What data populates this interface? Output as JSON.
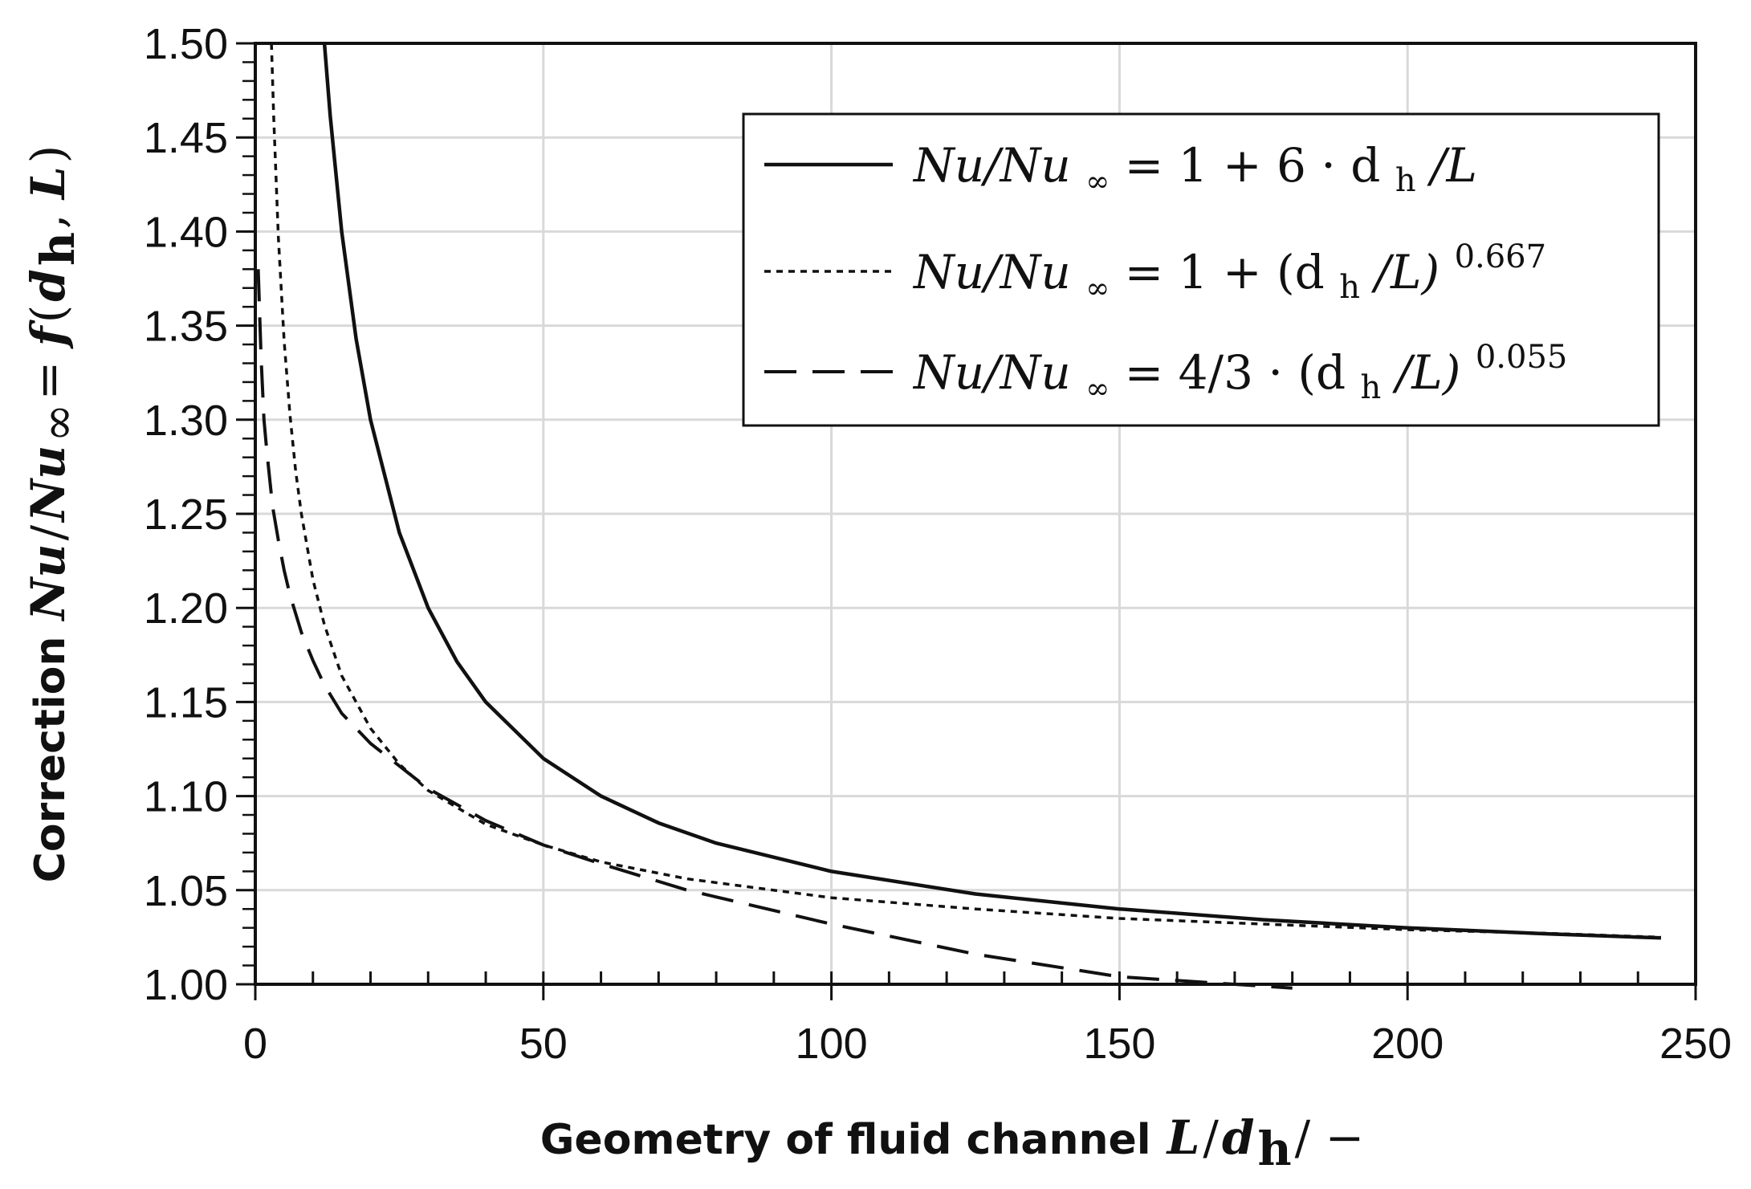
{
  "chart_data": {
    "type": "line",
    "xlabel": {
      "prefix": "Geometry of fluid channel",
      "math_L": "L",
      "math_slash": "/",
      "math_d": "d",
      "math_sub": "h",
      "math_suffix": " / −"
    },
    "ylabel": {
      "prefix": "Correction",
      "math_Nu": "Nu",
      "math_slash": "/",
      "math_Nu2": "Nu",
      "math_inf": "∞",
      "math_eq": " = ",
      "math_f": "f",
      "math_open": "(",
      "math_d": "d",
      "math_sub": "h",
      "math_comma": ", ",
      "math_L": "L",
      "math_close": ")"
    },
    "xlim": [
      0,
      250
    ],
    "ylim": [
      1.0,
      1.5
    ],
    "x_ticks": [
      "0",
      "50",
      "100",
      "150",
      "200",
      "250"
    ],
    "y_ticks": [
      "1.00",
      "1.05",
      "1.10",
      "1.15",
      "1.20",
      "1.25",
      "1.30",
      "1.35",
      "1.40",
      "1.45",
      "1.50"
    ],
    "grid": true,
    "legend_position": "top-right",
    "series": [
      {
        "key": "s1",
        "line_style": "solid",
        "color": "#111111",
        "legend": {
          "lhs": "Nu/Nu",
          "inf": "∞",
          "rhs": " = 1 + 6 · d",
          "sub": "h",
          "tail": "/L",
          "sup": ""
        },
        "points": [
          [
            12.0,
            1.5
          ],
          [
            13.0,
            1.4615
          ],
          [
            15.0,
            1.4
          ],
          [
            17.5,
            1.3429
          ],
          [
            20.0,
            1.3
          ],
          [
            25.0,
            1.24
          ],
          [
            30.0,
            1.2
          ],
          [
            35.0,
            1.1714
          ],
          [
            40.0,
            1.15
          ],
          [
            50.0,
            1.12
          ],
          [
            60.0,
            1.1
          ],
          [
            70.0,
            1.0857
          ],
          [
            80.0,
            1.075
          ],
          [
            100.0,
            1.06
          ],
          [
            125.0,
            1.048
          ],
          [
            150.0,
            1.04
          ],
          [
            175.0,
            1.0343
          ],
          [
            200.0,
            1.03
          ],
          [
            225.0,
            1.0267
          ],
          [
            244.0,
            1.0246
          ]
        ]
      },
      {
        "key": "s2",
        "line_style": "dotted",
        "color": "#111111",
        "legend": {
          "lhs": "Nu/Nu",
          "inf": "∞",
          "rhs": " = 1 + (d",
          "sub": "h",
          "tail": "/L)",
          "sup": "0.667"
        },
        "points": [
          [
            2.8,
            1.5
          ],
          [
            3.2,
            1.46
          ],
          [
            4.0,
            1.397
          ],
          [
            5.0,
            1.342
          ],
          [
            6.0,
            1.303
          ],
          [
            7.0,
            1.273
          ],
          [
            8.0,
            1.25
          ],
          [
            10.0,
            1.215
          ],
          [
            12.0,
            1.191
          ],
          [
            15.0,
            1.164
          ],
          [
            20.0,
            1.136
          ],
          [
            25.0,
            1.117
          ],
          [
            30.0,
            1.103
          ],
          [
            40.0,
            1.085
          ],
          [
            50.0,
            1.074
          ],
          [
            60.0,
            1.065
          ],
          [
            75.0,
            1.056
          ],
          [
            100.0,
            1.046
          ],
          [
            125.0,
            1.04
          ],
          [
            150.0,
            1.035
          ],
          [
            175.0,
            1.032
          ],
          [
            200.0,
            1.029
          ],
          [
            225.0,
            1.027
          ],
          [
            244.0,
            1.025
          ]
        ]
      },
      {
        "key": "s3",
        "line_style": "dashed",
        "color": "#111111",
        "legend": {
          "lhs": "Nu/Nu",
          "inf": "∞",
          "rhs": " = 4/3 · (d",
          "sub": "h",
          "tail": "/L)",
          "sup": "0.055"
        },
        "points": [
          [
            0.5,
            1.38
          ],
          [
            1.0,
            1.333
          ],
          [
            1.5,
            1.3
          ],
          [
            2.0,
            1.283
          ],
          [
            3.0,
            1.254
          ],
          [
            4.0,
            1.236
          ],
          [
            5.0,
            1.22
          ],
          [
            6.0,
            1.207
          ],
          [
            8.0,
            1.187
          ],
          [
            10.0,
            1.172
          ],
          [
            12.0,
            1.159
          ],
          [
            15.0,
            1.144
          ],
          [
            20.0,
            1.128
          ],
          [
            25.0,
            1.116
          ],
          [
            30.0,
            1.104
          ],
          [
            40.0,
            1.087
          ],
          [
            50.0,
            1.074
          ],
          [
            60.0,
            1.064
          ],
          [
            75.0,
            1.05
          ],
          [
            100.0,
            1.032
          ],
          [
            125.0,
            1.016
          ],
          [
            150.0,
            1.004
          ],
          [
            180.0,
            0.998
          ]
        ]
      }
    ]
  }
}
